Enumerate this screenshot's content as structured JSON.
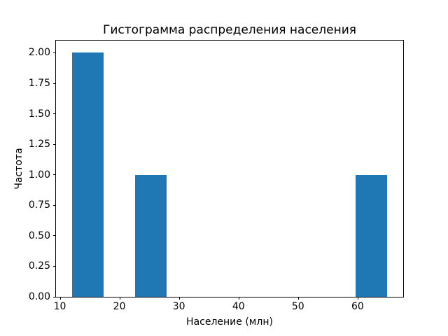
{
  "chart_data": {
    "type": "bar",
    "title": "Гистограмма распределения населения",
    "xlabel": "Население (млн)",
    "ylabel": "Частота",
    "bar_color": "#1f77b4",
    "axis_color": "#000000",
    "background_color": "#ffffff",
    "xlim": [
      9.35,
      67.65
    ],
    "ylim": [
      0,
      2.1
    ],
    "xticks": [
      {
        "value": 10,
        "label": "10"
      },
      {
        "value": 20,
        "label": "20"
      },
      {
        "value": 30,
        "label": "30"
      },
      {
        "value": 40,
        "label": "40"
      },
      {
        "value": 50,
        "label": "50"
      },
      {
        "value": 60,
        "label": "60"
      }
    ],
    "yticks": [
      {
        "value": 0.0,
        "label": "0.00"
      },
      {
        "value": 0.25,
        "label": "0.25"
      },
      {
        "value": 0.5,
        "label": "0.50"
      },
      {
        "value": 0.75,
        "label": "0.75"
      },
      {
        "value": 1.0,
        "label": "1.00"
      },
      {
        "value": 1.25,
        "label": "1.25"
      },
      {
        "value": 1.5,
        "label": "1.50"
      },
      {
        "value": 1.75,
        "label": "1.75"
      },
      {
        "value": 2.0,
        "label": "2.00"
      }
    ],
    "bars": [
      {
        "x0": 12.0,
        "x1": 17.3,
        "count": 2
      },
      {
        "x0": 22.6,
        "x1": 27.9,
        "count": 1
      },
      {
        "x0": 59.7,
        "x1": 65.0,
        "count": 1
      }
    ],
    "grid": false,
    "legend": null
  }
}
